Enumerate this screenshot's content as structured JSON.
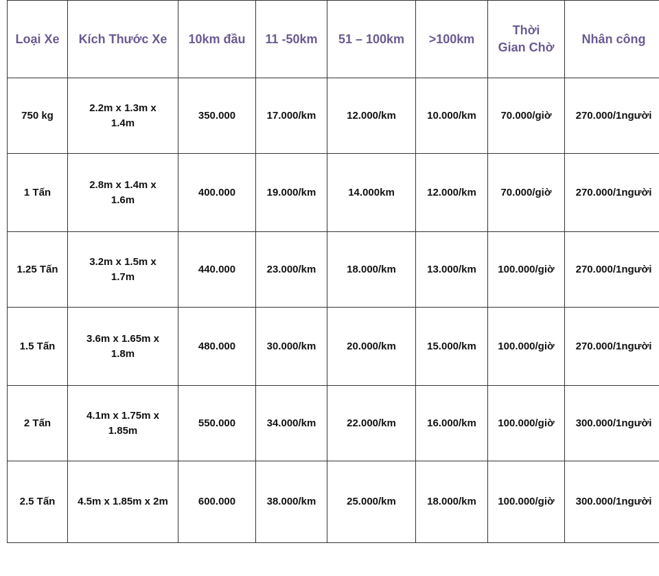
{
  "header_color": "#6b5a92",
  "columns": [
    "Loại Xe",
    "Kích Thước Xe",
    "10km đầu",
    "11 -50km",
    "51 – 100km",
    ">100km",
    "Thời Gian Chờ",
    "Nhân công"
  ],
  "rows": [
    [
      "750 kg",
      "2.2m x 1.3m x 1.4m",
      "350.000",
      "17.000/km",
      "12.000/km",
      "10.000/km",
      "70.000/giờ",
      "270.000/1người"
    ],
    [
      "1 Tấn",
      "2.8m x 1.4m x 1.6m",
      "400.000",
      "19.000/km",
      "14.000km",
      "12.000/km",
      "70.000/giờ",
      "270.000/1người"
    ],
    [
      "1.25 Tấn",
      "3.2m x 1.5m x 1.7m",
      "440.000",
      "23.000/km",
      "18.000/km",
      "13.000/km",
      "100.000/giờ",
      "270.000/1người"
    ],
    [
      "1.5 Tấn",
      "3.6m x 1.65m x 1.8m",
      "480.000",
      "30.000/km",
      "20.000/km",
      "15.000/km",
      "100.000/giờ",
      "270.000/1người"
    ],
    [
      "2 Tấn",
      "4.1m x 1.75m x 1.85m",
      "550.000",
      "34.000/km",
      "22.000/km",
      "16.000/km",
      "100.000/giờ",
      "300.000/1người"
    ],
    [
      "2.5 Tấn",
      "4.5m x 1.85m x 2m",
      "600.000",
      "38.000/km",
      "25.000/km",
      "18.000/km",
      "100.000/giờ",
      "300.000/1người"
    ]
  ]
}
